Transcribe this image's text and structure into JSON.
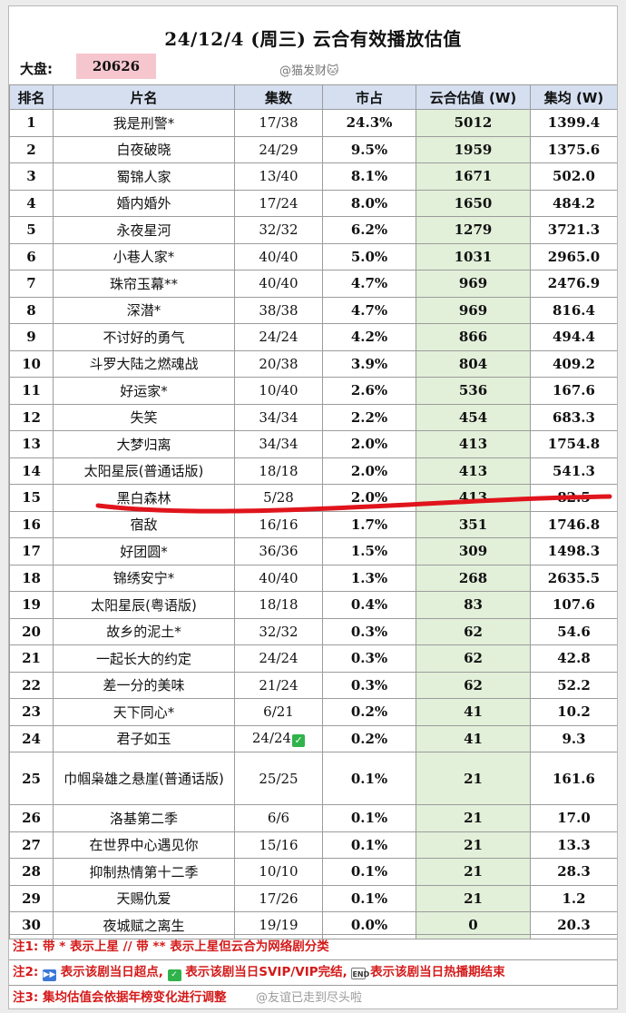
{
  "header": {
    "title": "24/12/4 (周三)  云合有效播放估值",
    "total_label": "大盘:",
    "total_value": "20626",
    "watermark": "@猫发财🐱"
  },
  "columns": [
    "排名",
    "片名",
    "集数",
    "市占",
    "云合估值 (W)",
    "集均 (W)"
  ],
  "rows": [
    {
      "rank": "1",
      "title": "我是刑警*",
      "episodes": "17/38",
      "share": "24.3%",
      "estimate": "5012",
      "avg": "1399.4"
    },
    {
      "rank": "2",
      "title": "白夜破晓",
      "episodes": "24/29",
      "share": "9.5%",
      "estimate": "1959",
      "avg": "1375.6"
    },
    {
      "rank": "3",
      "title": "蜀锦人家",
      "episodes": "13/40",
      "share": "8.1%",
      "estimate": "1671",
      "avg": "502.0"
    },
    {
      "rank": "4",
      "title": "婚内婚外",
      "episodes": "17/24",
      "share": "8.0%",
      "estimate": "1650",
      "avg": "484.2"
    },
    {
      "rank": "5",
      "title": "永夜星河",
      "episodes": "32/32",
      "share": "6.2%",
      "estimate": "1279",
      "avg": "3721.3"
    },
    {
      "rank": "6",
      "title": "小巷人家*",
      "episodes": "40/40",
      "share": "5.0%",
      "estimate": "1031",
      "avg": "2965.0"
    },
    {
      "rank": "7",
      "title": "珠帘玉幕**",
      "episodes": "40/40",
      "share": "4.7%",
      "estimate": "969",
      "avg": "2476.9"
    },
    {
      "rank": "8",
      "title": "深潜*",
      "episodes": "38/38",
      "share": "4.7%",
      "estimate": "969",
      "avg": "816.4"
    },
    {
      "rank": "9",
      "title": "不讨好的勇气",
      "episodes": "24/24",
      "share": "4.2%",
      "estimate": "866",
      "avg": "494.4"
    },
    {
      "rank": "10",
      "title": "斗罗大陆之燃魂战",
      "episodes": "20/38",
      "share": "3.9%",
      "estimate": "804",
      "avg": "409.2"
    },
    {
      "rank": "11",
      "title": "好运家*",
      "episodes": "10/40",
      "share": "2.6%",
      "estimate": "536",
      "avg": "167.6"
    },
    {
      "rank": "12",
      "title": "失笑",
      "episodes": "34/34",
      "share": "2.2%",
      "estimate": "454",
      "avg": "683.3"
    },
    {
      "rank": "13",
      "title": "大梦归离",
      "episodes": "34/34",
      "share": "2.0%",
      "estimate": "413",
      "avg": "1754.8"
    },
    {
      "rank": "14",
      "title": "太阳星辰(普通话版)",
      "episodes": "18/18",
      "share": "2.0%",
      "estimate": "413",
      "avg": "541.3"
    },
    {
      "rank": "15",
      "title": "黑白森林",
      "episodes": "5/28",
      "share": "2.0%",
      "estimate": "413",
      "avg": "82.5"
    },
    {
      "rank": "16",
      "title": "宿敌",
      "episodes": "16/16",
      "share": "1.7%",
      "estimate": "351",
      "avg": "1746.8"
    },
    {
      "rank": "17",
      "title": "好团圆*",
      "episodes": "36/36",
      "share": "1.5%",
      "estimate": "309",
      "avg": "1498.3"
    },
    {
      "rank": "18",
      "title": "锦绣安宁*",
      "episodes": "40/40",
      "share": "1.3%",
      "estimate": "268",
      "avg": "2635.5"
    },
    {
      "rank": "19",
      "title": "太阳星辰(粤语版)",
      "episodes": "18/18",
      "share": "0.4%",
      "estimate": "83",
      "avg": "107.6"
    },
    {
      "rank": "20",
      "title": "故乡的泥土*",
      "episodes": "32/32",
      "share": "0.3%",
      "estimate": "62",
      "avg": "54.6"
    },
    {
      "rank": "21",
      "title": "一起长大的约定",
      "episodes": "24/24",
      "share": "0.3%",
      "estimate": "62",
      "avg": "42.8"
    },
    {
      "rank": "22",
      "title": "差一分的美味",
      "episodes": "21/24",
      "share": "0.3%",
      "estimate": "62",
      "avg": "52.2"
    },
    {
      "rank": "23",
      "title": "天下同心*",
      "episodes": "6/21",
      "share": "0.2%",
      "estimate": "41",
      "avg": "10.2"
    },
    {
      "rank": "24",
      "title": "君子如玉",
      "episodes": "24/24",
      "share": "0.2%",
      "estimate": "41",
      "avg": "9.3",
      "vip_done": "✓"
    },
    {
      "rank": "25",
      "title": "巾帼枭雄之悬崖(普通话版)",
      "episodes": "25/25",
      "share": "0.1%",
      "estimate": "21",
      "avg": "161.6"
    },
    {
      "rank": "26",
      "title": "洛基第二季",
      "episodes": "6/6",
      "share": "0.1%",
      "estimate": "21",
      "avg": "17.0"
    },
    {
      "rank": "27",
      "title": "在世界中心遇见你",
      "episodes": "15/16",
      "share": "0.1%",
      "estimate": "21",
      "avg": "13.3"
    },
    {
      "rank": "28",
      "title": "抑制热情第十二季",
      "episodes": "10/10",
      "share": "0.1%",
      "estimate": "21",
      "avg": "28.3"
    },
    {
      "rank": "29",
      "title": "天赐仇爱",
      "episodes": "17/26",
      "share": "0.1%",
      "estimate": "21",
      "avg": "1.2"
    },
    {
      "rank": "30",
      "title": "夜城赋之离生",
      "episodes": "19/19",
      "share": "0.0%",
      "estimate": "0",
      "avg": "20.3"
    }
  ],
  "notes": {
    "note1_prefix": "注1:",
    "note1_text": "带 * 表示上星 // 带 ** 表示上星但云合为网络剧分类",
    "note2_prefix": "注2:",
    "note2_part1": "表示该剧当日超点,",
    "note2_part2": "表示该剧当日SVIP/VIP完结,",
    "note2_part3": "表示该剧当日热播期结束",
    "note3_prefix": "注3:",
    "note3_text": "集均估值会依据年榜变化进行调整",
    "icon_play": "▶▶",
    "icon_check": "✓",
    "icon_end": "END"
  },
  "watermark_bottom": "@友谊已走到尽头啦",
  "colors": {
    "header_bg": "#d5dff0",
    "estimate_bg": "#e2efd9",
    "total_bg": "#f6c6ce",
    "note_red": "#d41a1a",
    "highlight_line": "#e0141c"
  }
}
